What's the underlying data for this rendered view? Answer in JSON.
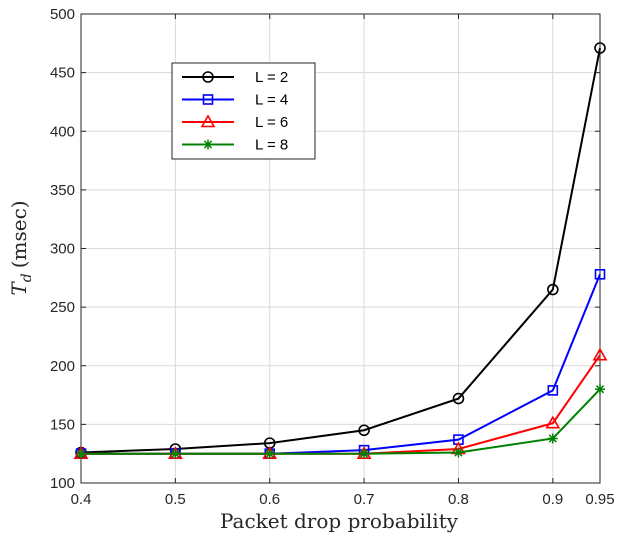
{
  "chart_data": {
    "type": "line",
    "xlabel": "Packet drop probability",
    "ylabel_main": "T",
    "ylabel_sub": "d",
    "ylabel_unit": "(msec)",
    "x": [
      0.4,
      0.5,
      0.6,
      0.7,
      0.8,
      0.9,
      0.95
    ],
    "xticks": [
      "0.4",
      "0.5",
      "0.6",
      "0.7",
      "0.8",
      "0.9",
      "0.95"
    ],
    "yticks": [
      "100",
      "150",
      "200",
      "250",
      "300",
      "350",
      "400",
      "450",
      "500"
    ],
    "xlim": [
      0.4,
      0.95
    ],
    "ylim": [
      100,
      500
    ],
    "grid": true,
    "legend_position": "top-left",
    "series": [
      {
        "name": "L = 2",
        "color": "#000000",
        "marker": "circle",
        "values": [
          126,
          129,
          134,
          145,
          172,
          265,
          471
        ]
      },
      {
        "name": "L = 4",
        "color": "#0000ff",
        "marker": "square",
        "values": [
          125,
          125,
          125,
          128,
          137,
          179,
          278
        ]
      },
      {
        "name": "L = 6",
        "color": "#ff0000",
        "marker": "triangle",
        "values": [
          125,
          125,
          125,
          125,
          129,
          151,
          209
        ]
      },
      {
        "name": "L = 8",
        "color": "#008000",
        "marker": "asterisk",
        "values": [
          125,
          125,
          125,
          125,
          126,
          138,
          180
        ]
      }
    ]
  }
}
